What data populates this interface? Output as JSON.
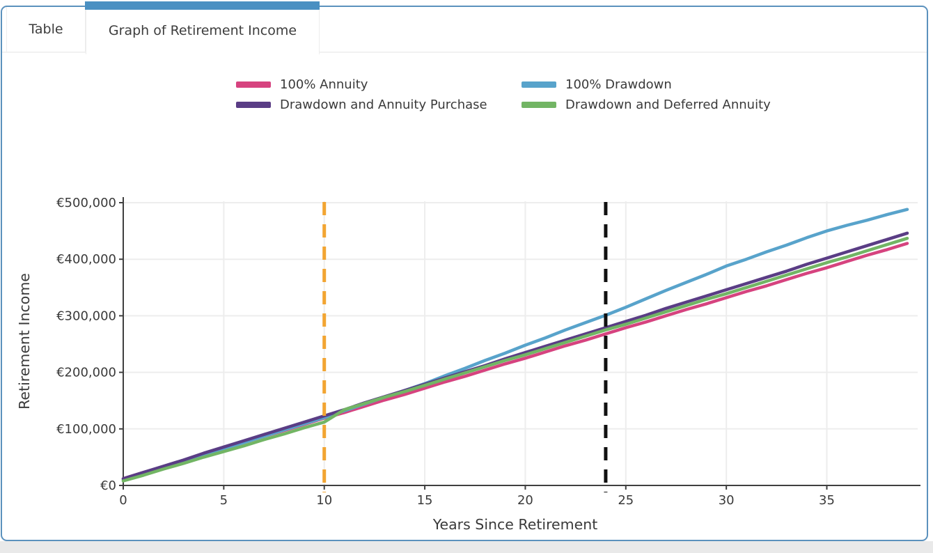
{
  "tabs": [
    {
      "label": "Table",
      "active": false
    },
    {
      "label": "Graph of Retirement Income",
      "active": true
    }
  ],
  "colors": {
    "accent_blue": "#4a90c2",
    "panel_border": "#5b91bd",
    "gridline": "#ededed",
    "axis": "#3f3f3f",
    "text": "#3a3a3a"
  },
  "chart_data": {
    "type": "line",
    "title": "",
    "xlabel": "Years Since Retirement",
    "ylabel": "Retirement Income",
    "x_range": [
      0,
      39
    ],
    "y_range": [
      0,
      500000
    ],
    "grid": true,
    "legend_position": "top-center",
    "x_ticks": [
      0,
      5,
      10,
      15,
      20,
      25,
      30,
      35
    ],
    "y_ticks": [
      {
        "value": 0,
        "label": "€0"
      },
      {
        "value": 100000,
        "label": "€100,000"
      },
      {
        "value": 200000,
        "label": "€200,000"
      },
      {
        "value": 300000,
        "label": "€300,000"
      },
      {
        "value": 400000,
        "label": "€400,000"
      },
      {
        "value": 500000,
        "label": "€500,000"
      }
    ],
    "x": [
      0,
      1,
      2,
      3,
      4,
      5,
      6,
      7,
      8,
      9,
      10,
      11,
      12,
      13,
      14,
      15,
      16,
      17,
      18,
      19,
      20,
      21,
      22,
      23,
      24,
      25,
      26,
      27,
      28,
      29,
      30,
      31,
      32,
      33,
      34,
      35,
      36,
      37,
      38,
      39
    ],
    "series": [
      {
        "name": "100% Annuity",
        "color": "#d6437f",
        "values": [
          12000,
          23000,
          33000,
          44000,
          55000,
          65000,
          76000,
          87000,
          97000,
          108000,
          119000,
          129000,
          140000,
          151000,
          161000,
          172000,
          183000,
          193000,
          204000,
          215000,
          225000,
          236000,
          247000,
          257000,
          268000,
          279000,
          289000,
          300000,
          311000,
          321000,
          332000,
          343000,
          353000,
          364000,
          375000,
          385000,
          396000,
          407000,
          417000,
          428000
        ]
      },
      {
        "name": "100% Drawdown",
        "color": "#58a3cb",
        "values": [
          10000,
          21000,
          32000,
          43000,
          54000,
          65000,
          76000,
          87000,
          98000,
          109000,
          120000,
          132000,
          144000,
          156000,
          168000,
          180000,
          194000,
          207000,
          221000,
          234000,
          248000,
          261000,
          275000,
          288000,
          301000,
          315000,
          330000,
          345000,
          359000,
          373000,
          388000,
          400000,
          413000,
          425000,
          438000,
          450000,
          460000,
          469000,
          479000,
          488000
        ]
      },
      {
        "name": "Drawdown and Annuity Purchase",
        "color": "#5a3d85",
        "values": [
          12000,
          23000,
          34000,
          45000,
          57000,
          68000,
          79000,
          90000,
          101000,
          112000,
          123000,
          134000,
          146000,
          157000,
          168000,
          179000,
          190000,
          201000,
          212000,
          224000,
          235000,
          246000,
          257000,
          268000,
          279000,
          290000,
          301000,
          313000,
          324000,
          335000,
          346000,
          357000,
          368000,
          379000,
          391000,
          402000,
          413000,
          424000,
          435000,
          446000
        ]
      },
      {
        "name": "Drawdown and Deferred Annuity",
        "color": "#72b564",
        "values": [
          8000,
          18000,
          29000,
          39000,
          50000,
          60000,
          70000,
          81000,
          91000,
          102000,
          112000,
          134000,
          145000,
          156000,
          166000,
          177000,
          188000,
          199000,
          210000,
          221000,
          231000,
          242000,
          253000,
          264000,
          275000,
          285000,
          296000,
          307000,
          318000,
          329000,
          339000,
          350000,
          361000,
          372000,
          383000,
          394000,
          404000,
          415000,
          426000,
          437000
        ]
      }
    ],
    "vlines": [
      {
        "x": 10,
        "color": "#f2a532",
        "style": "dashed"
      },
      {
        "x": 24,
        "color": "#111111",
        "style": "dashed"
      }
    ]
  }
}
